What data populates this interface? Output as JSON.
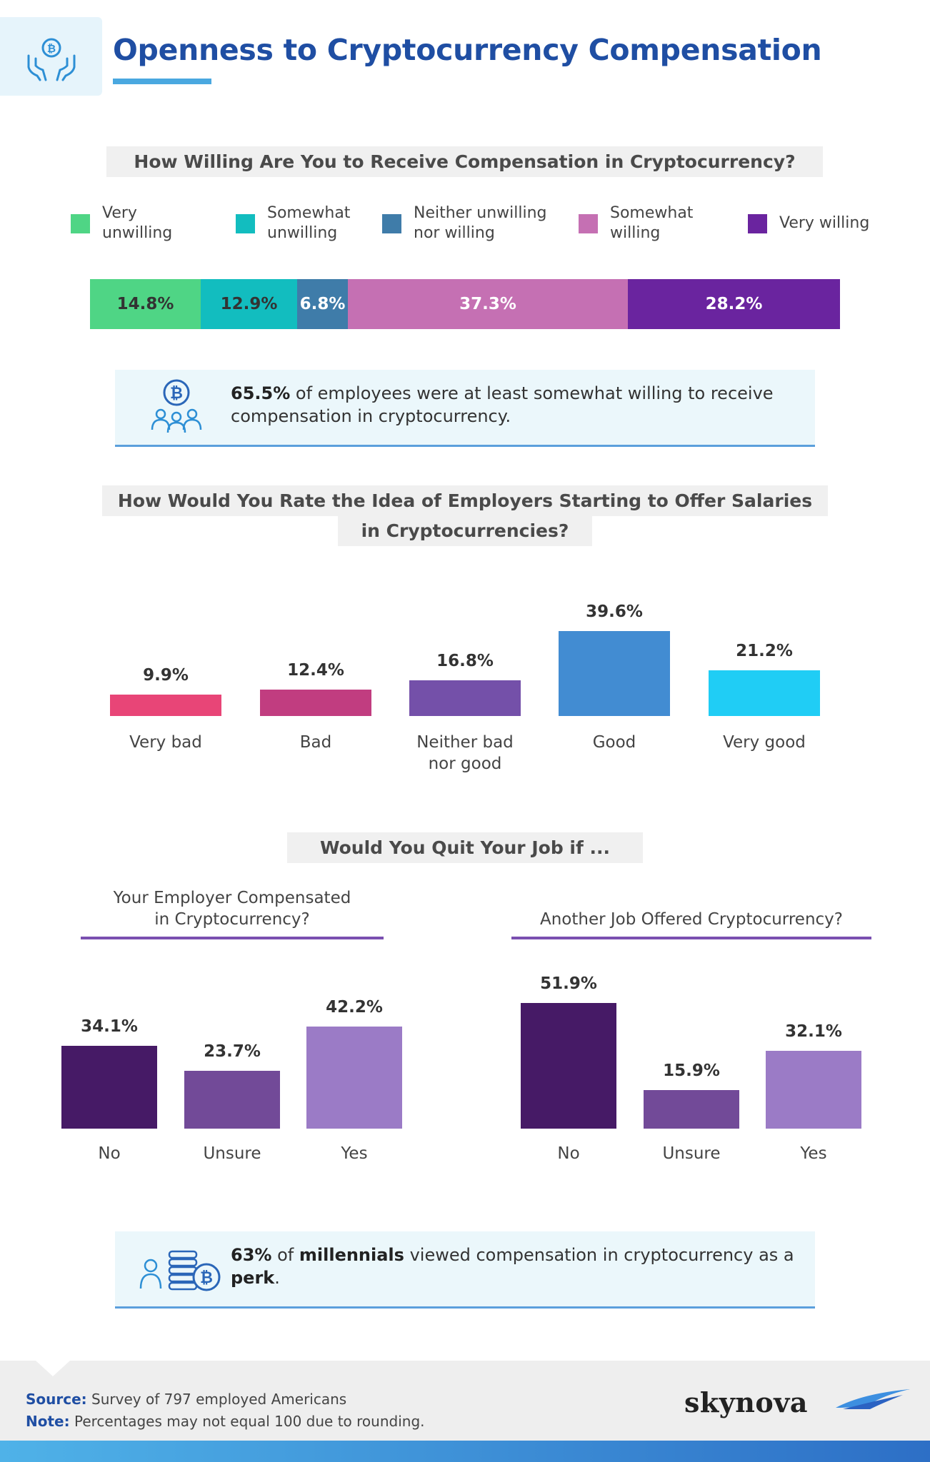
{
  "header": {
    "title": "Openness to Cryptocurrency Compensation",
    "icon": "hands-bitcoin-icon",
    "accent_color": "#1f4ea3"
  },
  "section1": {
    "title": "How Willing Are You to Receive Compensation in Cryptocurrency?",
    "legend": [
      {
        "label": "Very\nunwilling",
        "color": "#4fd585"
      },
      {
        "label": "Somewhat\nunwilling",
        "color": "#12bdbf"
      },
      {
        "label": "Neither unwilling\nnor willing",
        "color": "#3f7ca9"
      },
      {
        "label": "Somewhat\nwilling",
        "color": "#c570b3"
      },
      {
        "label": "Very willing",
        "color": "#6a249f"
      }
    ]
  },
  "callout1": {
    "icon": "people-bitcoin-icon",
    "highlight": "65.5%",
    "text": "of employees were at least somewhat willing to receive compensation in cryptocurrency."
  },
  "section2": {
    "title_line1": "How Would You Rate the Idea of Employers Starting to Offer Salaries",
    "title_line2": "in Cryptocurrencies?"
  },
  "section3": {
    "title": "Would You Quit Your Job if ...",
    "left_subtitle": "Your Employer Compensated\nin Cryptocurrency?",
    "right_subtitle": "Another Job Offered Cryptocurrency?"
  },
  "callout2": {
    "icon": "person-coins-icon",
    "highlight": "63%",
    "middle": "of",
    "bold_word": "millennials",
    "text": "viewed compensation in cryptocurrency as a",
    "bold_end": "perk",
    "end": "."
  },
  "footer": {
    "source_label": "Source:",
    "source_text": "Survey of 797 employed Americans",
    "note_label": "Note:",
    "note_text": "Percentages may not equal 100 due to rounding.",
    "brand": "skynova"
  },
  "chart_data": [
    {
      "type": "bar",
      "orientation": "horizontal-stacked",
      "title": "How Willing Are You to Receive Compensation in Cryptocurrency?",
      "categories": [
        "Very unwilling",
        "Somewhat unwilling",
        "Neither unwilling nor willing",
        "Somewhat willing",
        "Very willing"
      ],
      "values": [
        14.8,
        12.9,
        6.8,
        37.3,
        28.2
      ],
      "labels": [
        "14.8%",
        "12.9%",
        "6.8%",
        "37.3%",
        "28.2%"
      ],
      "label_colors": [
        "#333333",
        "#333333",
        "#ffffff",
        "#ffffff",
        "#ffffff"
      ],
      "colors": [
        "#4fd585",
        "#12bdbf",
        "#3f7ca9",
        "#c570b3",
        "#6a249f"
      ],
      "unit": "%"
    },
    {
      "type": "bar",
      "title": "How Would You Rate the Idea of Employers Starting to Offer Salaries in Cryptocurrencies?",
      "categories": [
        "Very bad",
        "Bad",
        "Neither bad\nnor good",
        "Good",
        "Very good"
      ],
      "values": [
        9.9,
        12.4,
        16.8,
        39.6,
        21.2
      ],
      "labels": [
        "9.9%",
        "12.4%",
        "16.8%",
        "39.6%",
        "21.2%"
      ],
      "colors": [
        "#e84577",
        "#c13d80",
        "#7450a9",
        "#428cd2",
        "#20cdf5"
      ],
      "unit": "%"
    },
    {
      "type": "bar",
      "title": "Your Employer Compensated in Cryptocurrency?",
      "categories": [
        "No",
        "Unsure",
        "Yes"
      ],
      "values": [
        34.1,
        23.7,
        42.2
      ],
      "labels": [
        "34.1%",
        "23.7%",
        "42.2%"
      ],
      "colors": [
        "#461a66",
        "#724a98",
        "#9b7bc6"
      ],
      "unit": "%"
    },
    {
      "type": "bar",
      "title": "Another Job Offered Cryptocurrency?",
      "categories": [
        "No",
        "Unsure",
        "Yes"
      ],
      "values": [
        51.9,
        15.9,
        32.1
      ],
      "labels": [
        "51.9%",
        "15.9%",
        "32.1%"
      ],
      "colors": [
        "#461a66",
        "#724a98",
        "#9b7bc6"
      ],
      "unit": "%"
    }
  ]
}
